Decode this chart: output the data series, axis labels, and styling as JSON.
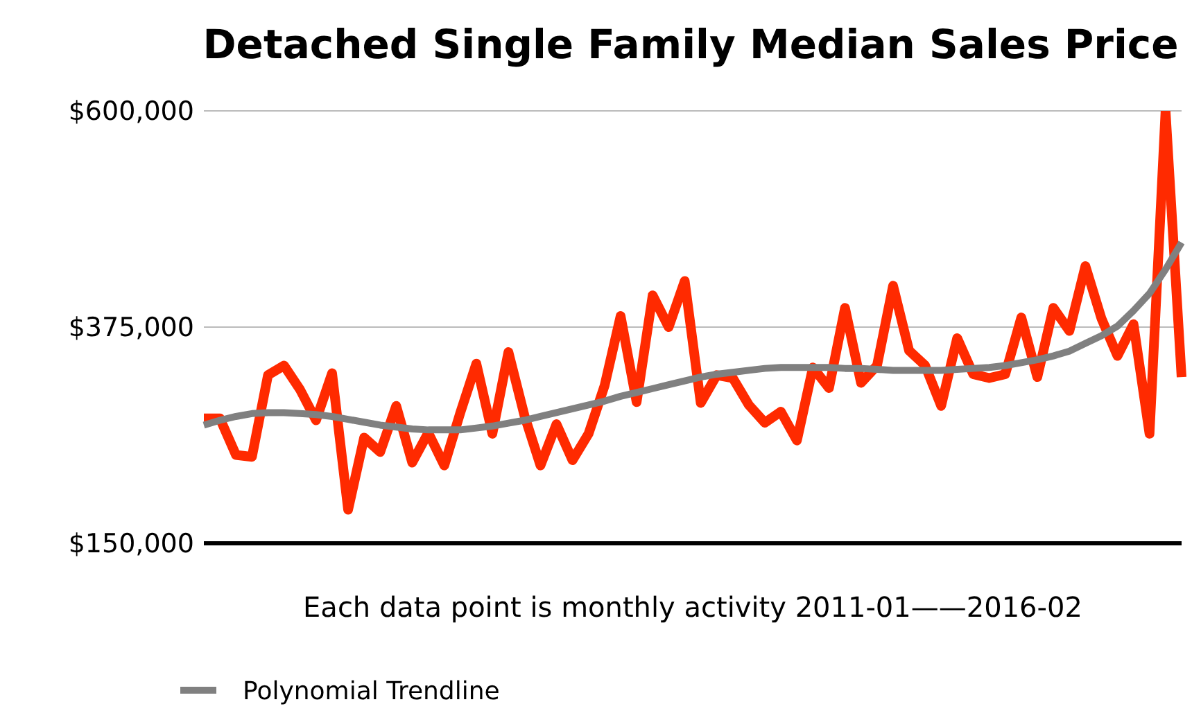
{
  "chart_data": {
    "type": "line",
    "title": "Detached Single Family Median Sales Price",
    "xlabel": "Each data point is monthly activity 2011-01——2016-02",
    "categories": [
      null,
      null,
      null,
      null,
      null,
      null,
      null,
      null,
      null,
      null,
      null,
      null,
      null,
      null,
      null,
      null,
      null,
      null,
      null,
      null,
      null,
      null,
      null,
      null,
      null,
      null,
      null,
      null,
      null,
      null,
      null,
      null,
      null,
      null,
      null,
      null,
      null,
      null,
      null,
      null,
      null,
      null,
      null,
      null,
      null,
      null,
      null,
      null,
      null,
      null,
      null,
      null,
      null,
      null,
      null,
      null,
      null,
      null,
      null,
      null,
      null,
      null
    ],
    "series": [
      {
        "color": "#ff2a00",
        "values": [
          280000,
          280000,
          242000,
          240000,
          325000,
          335000,
          310000,
          278000,
          327000,
          185000,
          260000,
          245000,
          293000,
          234000,
          265000,
          231000,
          286000,
          337000,
          264000,
          349000,
          283000,
          231000,
          274000,
          236500,
          264000,
          314000,
          386500,
          297000,
          408000,
          375000,
          423000,
          296000,
          325000,
          322000,
          294000,
          275500,
          287000,
          257000,
          333000,
          311500,
          395000,
          317000,
          335000,
          418000,
          350500,
          335000,
          293000,
          363500,
          326000,
          322000,
          326000,
          385000,
          323000,
          395000,
          371000,
          438500,
          384000,
          345000,
          378000,
          264000,
          600000,
          323000
        ]
      },
      {
        "name": "Polynomial Trendline",
        "color": "#808080",
        "values": [
          273000,
          278000,
          282000,
          285000,
          286000,
          286000,
          285000,
          284000,
          282000,
          279000,
          276000,
          273000,
          271000,
          269000,
          268000,
          268000,
          268000,
          270000,
          272000,
          275000,
          278000,
          282000,
          286000,
          290000,
          294000,
          298000,
          303000,
          307000,
          311000,
          315000,
          319000,
          323000,
          326000,
          328000,
          330000,
          332000,
          333000,
          333000,
          333000,
          333000,
          332000,
          332000,
          331000,
          330000,
          330000,
          330000,
          330000,
          331000,
          332000,
          333000,
          335000,
          338000,
          341000,
          345000,
          350000,
          358000,
          366000,
          376000,
          392000,
          410000,
          435000,
          463000
        ]
      }
    ],
    "ylim": [
      150000,
      600000
    ],
    "yticks": [
      {
        "value": 150000,
        "label": "$150,000"
      },
      {
        "value": 375000,
        "label": "$375,000"
      },
      {
        "value": 600000,
        "label": "$600,000"
      }
    ],
    "grid": "y",
    "legend": "bottom left",
    "marker": "none",
    "line_style": "solid"
  }
}
